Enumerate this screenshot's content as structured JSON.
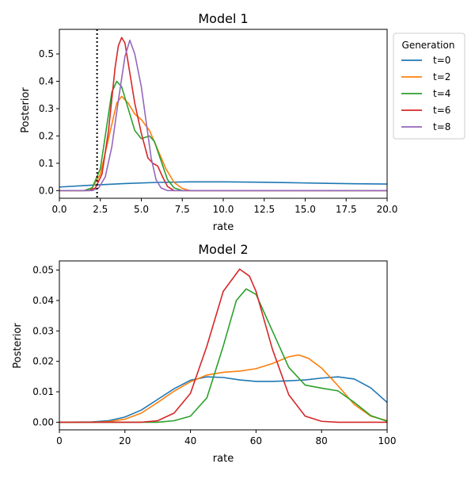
{
  "chart_data": [
    {
      "type": "line",
      "title": "Model 1",
      "xlabel": "rate",
      "ylabel": "Posterior",
      "xlim": [
        0,
        20
      ],
      "ylim": [
        -0.028,
        0.59
      ],
      "xticks": [
        0,
        2.5,
        5,
        7.5,
        10,
        12.5,
        15,
        17.5,
        20
      ],
      "xtick_labels": [
        "0.0",
        "2.5",
        "5.0",
        "7.5",
        "10.0",
        "12.5",
        "15.0",
        "17.5",
        "20.0"
      ],
      "yticks": [
        0,
        0.1,
        0.2,
        0.3,
        0.4,
        0.5
      ],
      "ytick_labels": [
        "0.0",
        "0.1",
        "0.2",
        "0.3",
        "0.4",
        "0.5"
      ],
      "vline": 2.3,
      "legend": {
        "title": "Generation",
        "placement": "outside-right"
      },
      "series": [
        {
          "name": "t=0",
          "color": "#1f77b4",
          "x": [
            0,
            2,
            4,
            6,
            8,
            10,
            12,
            14,
            16,
            18,
            20
          ],
          "y": [
            0.013,
            0.02,
            0.026,
            0.03,
            0.032,
            0.032,
            0.031,
            0.029,
            0.027,
            0.025,
            0.024
          ]
        },
        {
          "name": "t=2",
          "color": "#ff7f0e",
          "x": [
            0,
            1.5,
            2,
            2.5,
            3,
            3.5,
            3.8,
            4.2,
            4.6,
            5,
            5.5,
            6,
            6.5,
            7,
            7.5,
            8,
            20
          ],
          "y": [
            0,
            0,
            0.01,
            0.06,
            0.19,
            0.32,
            0.345,
            0.32,
            0.28,
            0.26,
            0.22,
            0.15,
            0.08,
            0.03,
            0.008,
            0,
            0
          ]
        },
        {
          "name": "t=4",
          "color": "#2ca02c",
          "x": [
            0,
            1.5,
            2,
            2.5,
            3,
            3.2,
            3.5,
            3.8,
            4.2,
            4.6,
            5,
            5.5,
            5.8,
            6.2,
            6.6,
            7,
            7.5,
            20
          ],
          "y": [
            0,
            0,
            0.01,
            0.08,
            0.28,
            0.36,
            0.4,
            0.38,
            0.3,
            0.22,
            0.19,
            0.2,
            0.18,
            0.11,
            0.04,
            0.01,
            0,
            0
          ]
        },
        {
          "name": "t=6",
          "color": "#d62728",
          "x": [
            0,
            1.8,
            2.2,
            2.6,
            3,
            3.4,
            3.6,
            3.8,
            4,
            4.3,
            4.6,
            5,
            5.4,
            5.7,
            6,
            6.3,
            6.6,
            7,
            20
          ],
          "y": [
            0,
            0,
            0.01,
            0.06,
            0.22,
            0.45,
            0.53,
            0.56,
            0.54,
            0.43,
            0.32,
            0.21,
            0.12,
            0.1,
            0.09,
            0.05,
            0.015,
            0,
            0
          ]
        },
        {
          "name": "t=8",
          "color": "#9467bd",
          "x": [
            0,
            2,
            2.4,
            2.8,
            3.2,
            3.6,
            4,
            4.3,
            4.6,
            5,
            5.3,
            5.6,
            5.9,
            6.2,
            6.6,
            20
          ],
          "y": [
            0,
            0,
            0.01,
            0.05,
            0.16,
            0.33,
            0.49,
            0.55,
            0.5,
            0.38,
            0.25,
            0.12,
            0.04,
            0.01,
            0,
            0
          ]
        }
      ]
    },
    {
      "type": "line",
      "title": "Model 2",
      "xlabel": "rate",
      "ylabel": "Posterior",
      "xlim": [
        0,
        100
      ],
      "ylim": [
        -0.0025,
        0.053
      ],
      "xticks": [
        0,
        20,
        40,
        60,
        80,
        100
      ],
      "xtick_labels": [
        "0",
        "20",
        "40",
        "60",
        "80",
        "100"
      ],
      "yticks": [
        0,
        0.01,
        0.02,
        0.03,
        0.04,
        0.05
      ],
      "ytick_labels": [
        "0.00",
        "0.01",
        "0.02",
        "0.03",
        "0.04",
        "0.05"
      ],
      "series": [
        {
          "name": "t=0",
          "color": "#1f77b4",
          "x": [
            0,
            10,
            15,
            20,
            25,
            30,
            35,
            40,
            45,
            50,
            55,
            60,
            65,
            70,
            75,
            80,
            85,
            90,
            95,
            100
          ],
          "y": [
            0,
            0.0001,
            0.0005,
            0.0017,
            0.004,
            0.0075,
            0.011,
            0.0138,
            0.0149,
            0.0147,
            0.0139,
            0.0134,
            0.0134,
            0.0136,
            0.0139,
            0.0145,
            0.0149,
            0.0142,
            0.0113,
            0.0065
          ]
        },
        {
          "name": "t=2",
          "color": "#ff7f0e",
          "x": [
            0,
            10,
            15,
            20,
            25,
            30,
            35,
            40,
            45,
            50,
            55,
            60,
            65,
            70,
            73,
            76,
            80,
            85,
            90,
            95,
            100
          ],
          "y": [
            0,
            0,
            0.0002,
            0.001,
            0.003,
            0.0065,
            0.0102,
            0.0133,
            0.0155,
            0.0164,
            0.0168,
            0.0176,
            0.0193,
            0.0215,
            0.0221,
            0.021,
            0.0178,
            0.012,
            0.0058,
            0.002,
            0.0005
          ]
        },
        {
          "name": "t=4",
          "color": "#2ca02c",
          "x": [
            0,
            30,
            35,
            40,
            45,
            50,
            54,
            57,
            60,
            65,
            70,
            75,
            80,
            85,
            90,
            95,
            100
          ],
          "y": [
            0,
            0,
            0.0005,
            0.002,
            0.008,
            0.025,
            0.04,
            0.0438,
            0.042,
            0.03,
            0.018,
            0.0122,
            0.0112,
            0.0103,
            0.0065,
            0.0022,
            0.0003
          ]
        },
        {
          "name": "t=6",
          "color": "#d62728",
          "x": [
            0,
            25,
            30,
            35,
            40,
            45,
            50,
            55,
            58,
            60,
            65,
            70,
            75,
            80,
            85,
            100
          ],
          "y": [
            0,
            0,
            0.0005,
            0.003,
            0.0095,
            0.025,
            0.043,
            0.0503,
            0.048,
            0.043,
            0.024,
            0.009,
            0.002,
            0.0003,
            0,
            0
          ]
        }
      ]
    }
  ]
}
